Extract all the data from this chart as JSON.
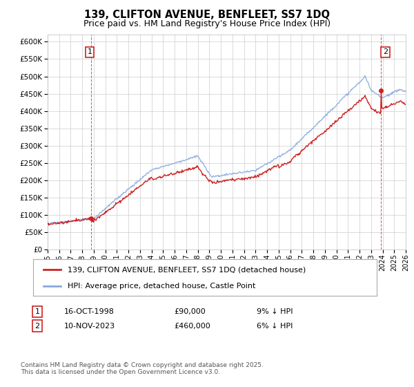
{
  "title": "139, CLIFTON AVENUE, BENFLEET, SS7 1DQ",
  "subtitle": "Price paid vs. HM Land Registry's House Price Index (HPI)",
  "line_color_red": "#cc2222",
  "line_color_blue": "#88aadd",
  "bg_color": "#ffffff",
  "grid_color": "#cccccc",
  "ylim": [
    0,
    620000
  ],
  "yticks": [
    0,
    50000,
    100000,
    150000,
    200000,
    250000,
    300000,
    350000,
    400000,
    450000,
    500000,
    550000,
    600000
  ],
  "xlim_start": 1995,
  "xlim_end": 2026,
  "sale1_year": 1998.79,
  "sale1_price": 90000,
  "sale1_date": "16-OCT-1998",
  "sale1_note": "9% ↓ HPI",
  "sale2_year": 2023.87,
  "sale2_price": 460000,
  "sale2_date": "10-NOV-2023",
  "sale2_note": "6% ↓ HPI",
  "legend_line1": "139, CLIFTON AVENUE, BENFLEET, SS7 1DQ (detached house)",
  "legend_line2": "HPI: Average price, detached house, Castle Point",
  "footnote": "Contains HM Land Registry data © Crown copyright and database right 2025.\nThis data is licensed under the Open Government Licence v3.0."
}
